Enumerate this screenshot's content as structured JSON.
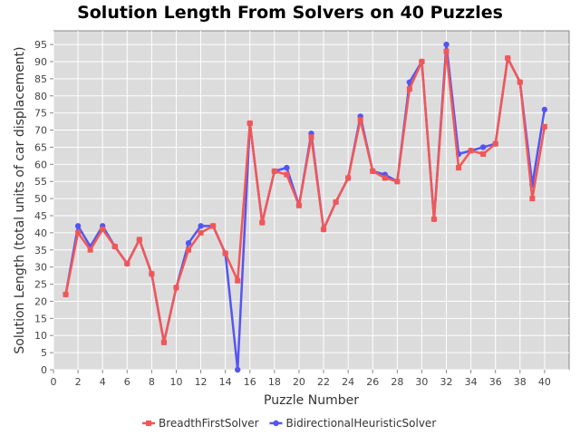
{
  "chart_data": {
    "type": "line",
    "title": "Solution Length From Solvers on 40 Puzzles",
    "xlabel": "Puzzle Number",
    "ylabel": "Solution Length (total units of car displacement)",
    "xlim": [
      0,
      42
    ],
    "ylim": [
      0,
      99
    ],
    "xticks": [
      0,
      2,
      4,
      6,
      8,
      10,
      12,
      14,
      16,
      18,
      20,
      22,
      24,
      26,
      28,
      30,
      32,
      34,
      36,
      38,
      40
    ],
    "yticks": [
      0,
      5,
      10,
      15,
      20,
      25,
      30,
      35,
      40,
      45,
      50,
      55,
      60,
      65,
      70,
      75,
      80,
      85,
      90,
      95
    ],
    "grid": true,
    "legend_position": "bottom",
    "x": [
      1,
      2,
      3,
      4,
      5,
      6,
      7,
      8,
      9,
      10,
      11,
      12,
      13,
      14,
      15,
      16,
      17,
      18,
      19,
      20,
      21,
      22,
      23,
      24,
      25,
      26,
      27,
      28,
      29,
      30,
      31,
      32,
      33,
      34,
      35,
      36,
      37,
      38,
      39,
      40
    ],
    "series": [
      {
        "name": "BreadthFirstSolver",
        "color": "#f25757",
        "marker": "square",
        "values": [
          22,
          40,
          35,
          41,
          36,
          31,
          38,
          28,
          8,
          24,
          35,
          40,
          42,
          34,
          26,
          72,
          43,
          58,
          57,
          48,
          68,
          41,
          49,
          56,
          73,
          58,
          56,
          55,
          82,
          90,
          44,
          93,
          59,
          64,
          63,
          66,
          91,
          84,
          50,
          71
        ]
      },
      {
        "name": "BidirectionalHeuristicSolver",
        "color": "#5555f2",
        "marker": "circle",
        "values": [
          22,
          42,
          36,
          42,
          36,
          31,
          38,
          28,
          8,
          24,
          37,
          42,
          42,
          34,
          0,
          72,
          43,
          58,
          59,
          48,
          69,
          41,
          49,
          56,
          74,
          58,
          57,
          55,
          84,
          90,
          44,
          95,
          63,
          64,
          65,
          66,
          91,
          84,
          54,
          76
        ]
      }
    ]
  }
}
